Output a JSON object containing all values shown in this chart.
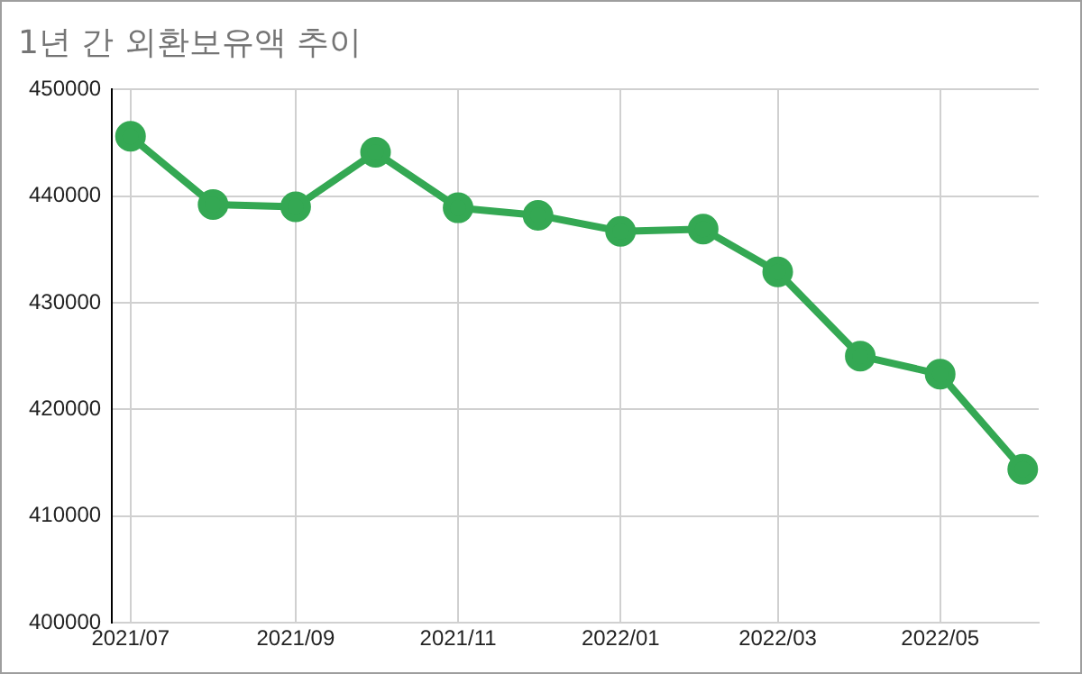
{
  "chart_data": {
    "type": "line",
    "title": "1년 간 외환보유액 추이",
    "x": [
      "2021-07",
      "2021-08",
      "2021-09",
      "2021-10",
      "2021-11",
      "2021-12",
      "2022-01",
      "2022-02",
      "2022-03",
      "2022-04",
      "2022-05",
      "2022-06"
    ],
    "series": [
      {
        "color": "#34a853",
        "values": [
          445600,
          439200,
          439000,
          444100,
          438900,
          438200,
          436700,
          436900,
          432900,
          425000,
          423300,
          414400
        ]
      }
    ],
    "xlim": [
      "2021-06-24",
      "2022-06-07"
    ],
    "xticks": [
      {
        "value": "2021-07",
        "label": "2021/07"
      },
      {
        "value": "2021-09",
        "label": "2021/09"
      },
      {
        "value": "2021-11",
        "label": "2021/11"
      },
      {
        "value": "2022-01",
        "label": "2022/01"
      },
      {
        "value": "2022-03",
        "label": "2022/03"
      },
      {
        "value": "2022-05",
        "label": "2022/05"
      }
    ],
    "ylim": [
      400000,
      450000
    ],
    "yticks": [
      400000,
      410000,
      420000,
      430000,
      440000,
      450000
    ],
    "grid": true,
    "legend": false,
    "marker": "circle",
    "line_style": "solid"
  }
}
